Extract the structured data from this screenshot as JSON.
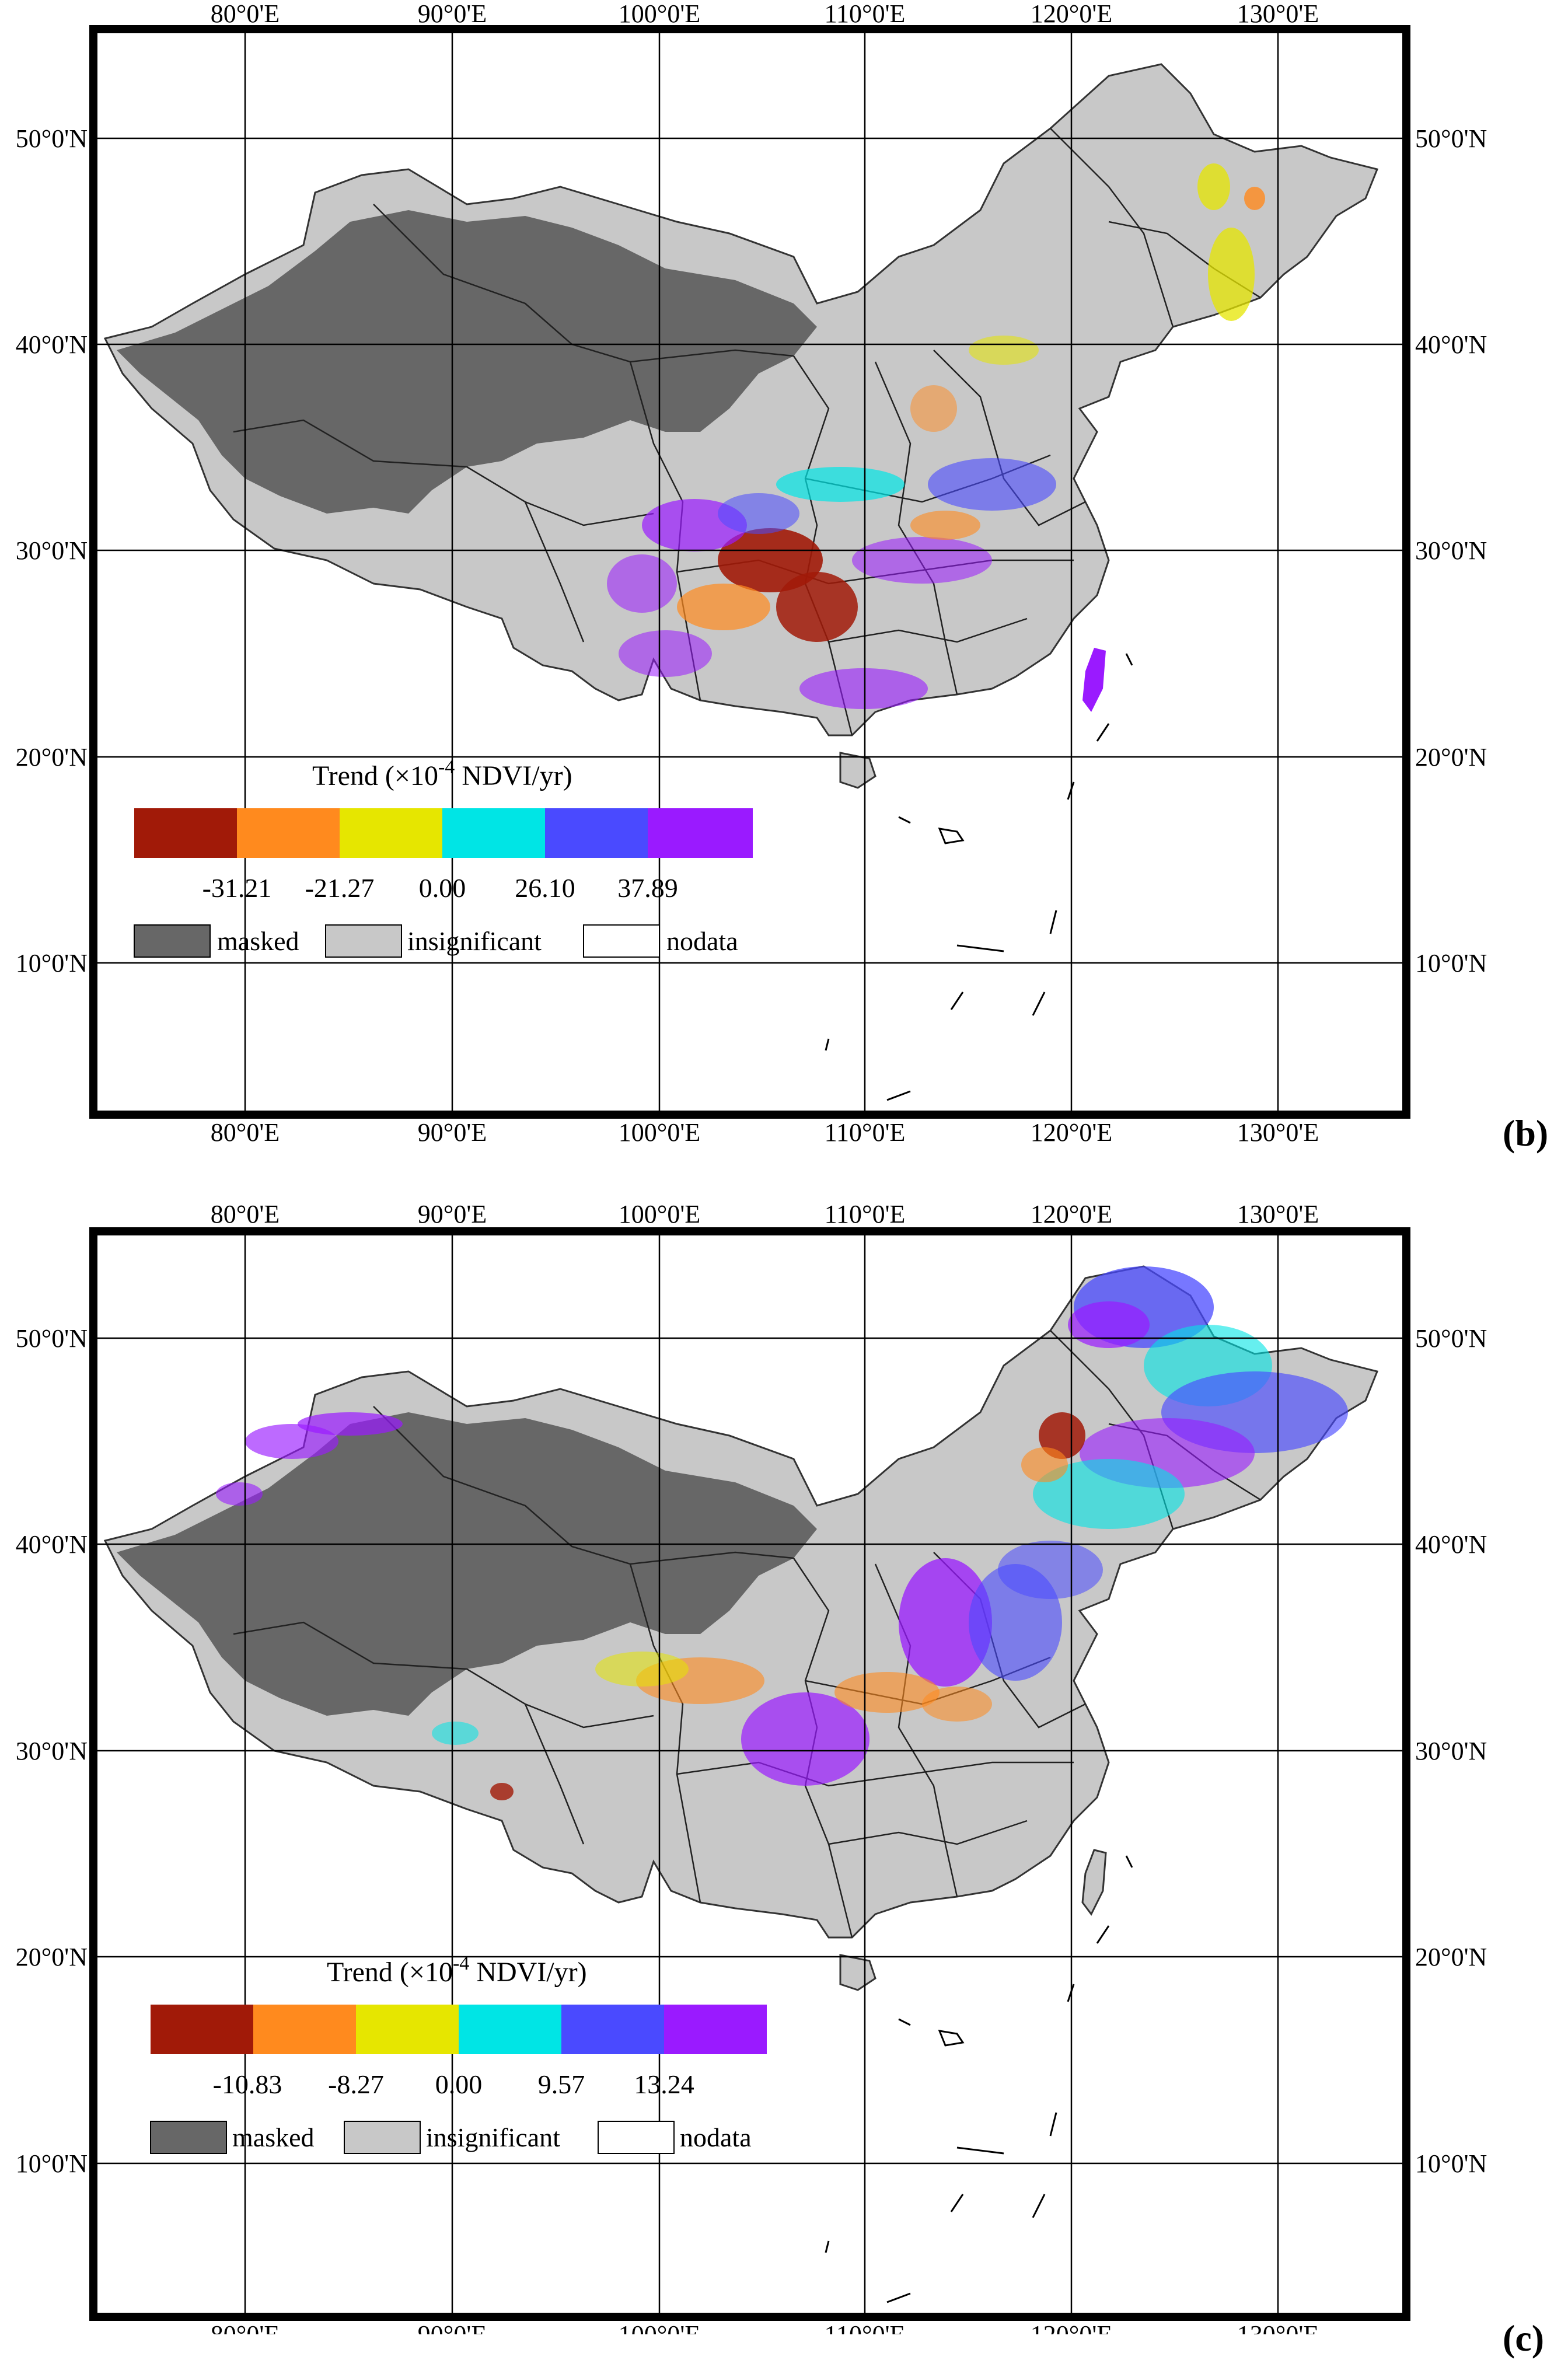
{
  "colors": {
    "masked": "#676767",
    "insignificant": "#c8c8c8",
    "nodata": "#ffffff",
    "bins": [
      "#a11a08",
      "#ff8a1e",
      "#e6e600",
      "#00e5e5",
      "#4a4aff",
      "#9a1aff"
    ]
  },
  "axes": {
    "lon_labels": [
      "80°0'E",
      "90°0'E",
      "100°0'E",
      "110°0'E",
      "120°0'E",
      "130°0'E"
    ],
    "lat_labels": [
      "50°0'N",
      "40°0'N",
      "30°0'N",
      "20°0'N",
      "10°0'N"
    ]
  },
  "panels": [
    {
      "letter": "b",
      "legend": {
        "title": "Trend (×10",
        "title_exp": "-4",
        "title_unit": " NDVI/yr)",
        "breaks": [
          "-31.21",
          "-21.27",
          "0.00",
          "26.10",
          "37.89"
        ],
        "categories": [
          "masked",
          "insignificant",
          "nodata"
        ]
      }
    },
    {
      "letter": "c",
      "legend": {
        "title": "Trend (×10",
        "title_exp": "-4",
        "title_unit": " NDVI/yr)",
        "breaks": [
          "-10.83",
          "-8.27",
          "0.00",
          "9.57",
          "13.24"
        ],
        "categories": [
          "masked",
          "insignificant",
          "nodata"
        ]
      }
    }
  ]
}
